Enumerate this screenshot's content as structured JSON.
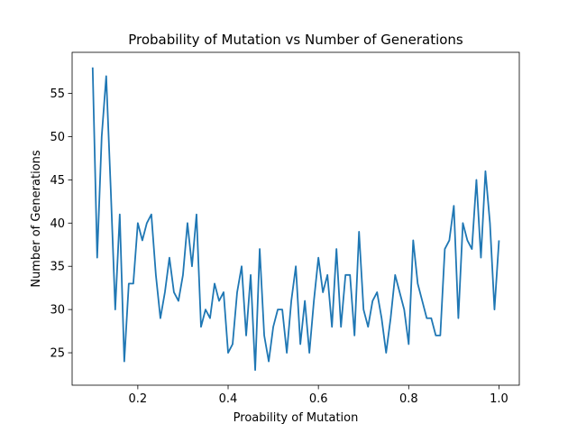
{
  "chart_data": {
    "type": "line",
    "title": "Probability of Mutation vs Number of Generations",
    "xlabel": "Proability of Mutation",
    "ylabel": "Number of Generations",
    "xlim": [
      0.0545,
      1.045
    ],
    "ylim": [
      21.25,
      59.75
    ],
    "xticks": [
      0.2,
      0.4,
      0.6,
      0.8,
      1.0
    ],
    "xtick_labels": [
      "0.2",
      "0.4",
      "0.6",
      "0.8",
      "1.0"
    ],
    "yticks": [
      25,
      30,
      35,
      40,
      45,
      50,
      55
    ],
    "ytick_labels": [
      "25",
      "30",
      "35",
      "40",
      "45",
      "50",
      "55"
    ],
    "grid": false,
    "legend": false,
    "color": "#1f77b4",
    "series": [
      {
        "x": [
          0.1,
          0.11,
          0.12,
          0.13,
          0.14,
          0.15,
          0.16,
          0.17,
          0.18,
          0.19,
          0.2,
          0.21,
          0.22,
          0.23,
          0.24,
          0.25,
          0.26,
          0.27,
          0.28,
          0.29,
          0.3,
          0.31,
          0.32,
          0.33,
          0.34,
          0.35,
          0.36,
          0.37,
          0.38,
          0.39,
          0.4,
          0.41,
          0.42,
          0.43,
          0.44,
          0.45,
          0.46,
          0.47,
          0.48,
          0.49,
          0.5,
          0.51,
          0.52,
          0.53,
          0.54,
          0.55,
          0.56,
          0.57,
          0.58,
          0.59,
          0.6,
          0.61,
          0.62,
          0.63,
          0.64,
          0.65,
          0.66,
          0.67,
          0.68,
          0.69,
          0.7,
          0.71,
          0.72,
          0.73,
          0.74,
          0.75,
          0.76,
          0.77,
          0.78,
          0.79,
          0.8,
          0.81,
          0.82,
          0.83,
          0.84,
          0.85,
          0.86,
          0.87,
          0.88,
          0.89,
          0.9,
          0.91,
          0.92,
          0.93,
          0.94,
          0.95,
          0.96,
          0.97,
          0.98,
          0.99,
          1.0
        ],
        "values": [
          58,
          36,
          50,
          57,
          44,
          30,
          41,
          24,
          33,
          33,
          40,
          38,
          40,
          41,
          34,
          29,
          32,
          36,
          32,
          31,
          34,
          40,
          35,
          41,
          28,
          30,
          29,
          33,
          31,
          32,
          25,
          26,
          32,
          35,
          27,
          34,
          23,
          37,
          27,
          24,
          28,
          30,
          30,
          25,
          31,
          35,
          26,
          31,
          25,
          31,
          36,
          32,
          34,
          28,
          37,
          28,
          34,
          34,
          27,
          39,
          30,
          28,
          31,
          32,
          29,
          25,
          29,
          34,
          32,
          30,
          26,
          38,
          33,
          31,
          29,
          29,
          27,
          27,
          37,
          38,
          42,
          29,
          40,
          38,
          37,
          45,
          36,
          46,
          40,
          30,
          38
        ]
      }
    ]
  }
}
